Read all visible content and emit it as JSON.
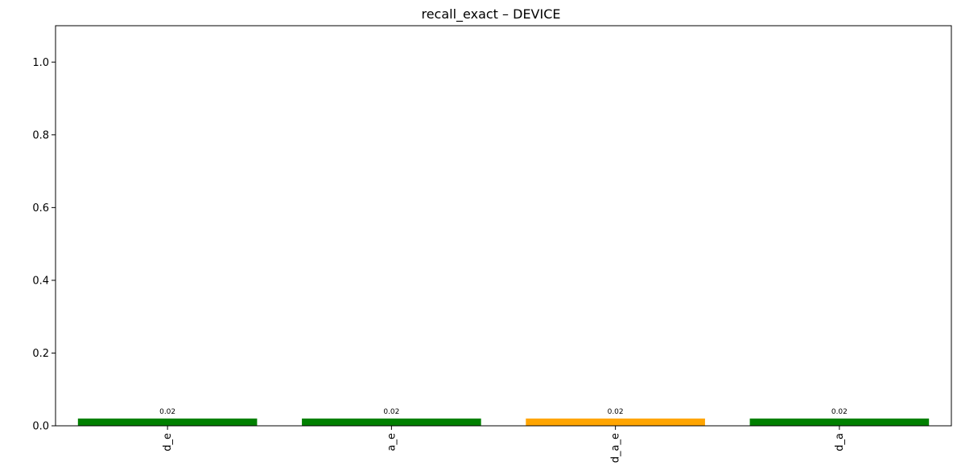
{
  "chart_data": {
    "type": "bar",
    "title": "recall_exact – DEVICE",
    "xlabel": "",
    "ylabel": "",
    "categories": [
      "d_e",
      "a_e",
      "d_a_e",
      "d_a"
    ],
    "values": [
      0.02,
      0.02,
      0.02,
      0.02
    ],
    "data_labels": [
      "0.02",
      "0.02",
      "0.02",
      "0.02"
    ],
    "bar_colors": [
      "#008000",
      "#008000",
      "#FFA500",
      "#008000"
    ],
    "ylim": [
      0,
      1.1
    ],
    "yticks": [
      0.0,
      0.2,
      0.4,
      0.6,
      0.8,
      1.0
    ],
    "ytick_labels": [
      "0.0",
      "0.2",
      "0.4",
      "0.6",
      "0.8",
      "1.0"
    ],
    "xtick_rotation": "vertical",
    "grid": false,
    "legend": "none"
  }
}
